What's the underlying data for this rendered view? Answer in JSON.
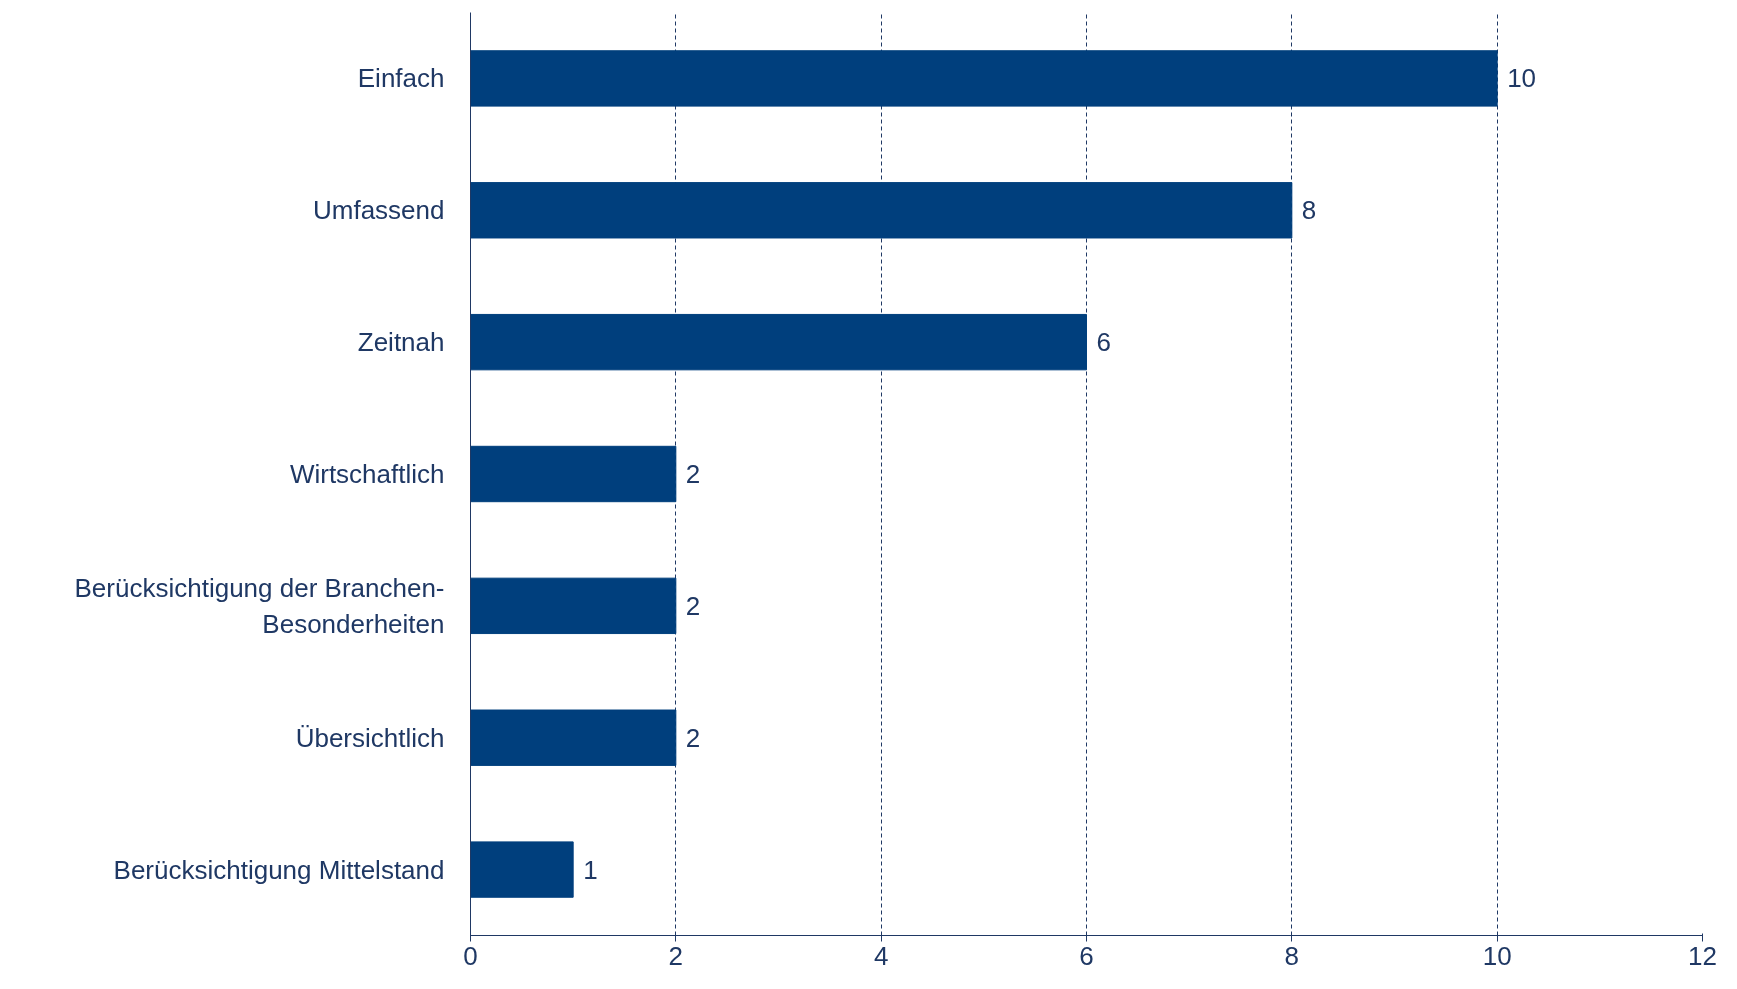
{
  "chart_data": {
    "type": "bar",
    "orientation": "horizontal",
    "categories": [
      "Einfach",
      "Umfassend",
      "Zeitnah",
      "Wirtschaftlich",
      "Berücksichtigung der Branchen-\nBesonderheiten",
      "Übersichtlich",
      "Berücksichtigung Mittelstand"
    ],
    "values": [
      10,
      8,
      6,
      2,
      2,
      2,
      1
    ],
    "color": "#003f7d",
    "xlim": [
      0,
      12
    ],
    "xticks": [
      0,
      2,
      4,
      6,
      8,
      10,
      12
    ],
    "grid": "x",
    "data_labels": true
  }
}
